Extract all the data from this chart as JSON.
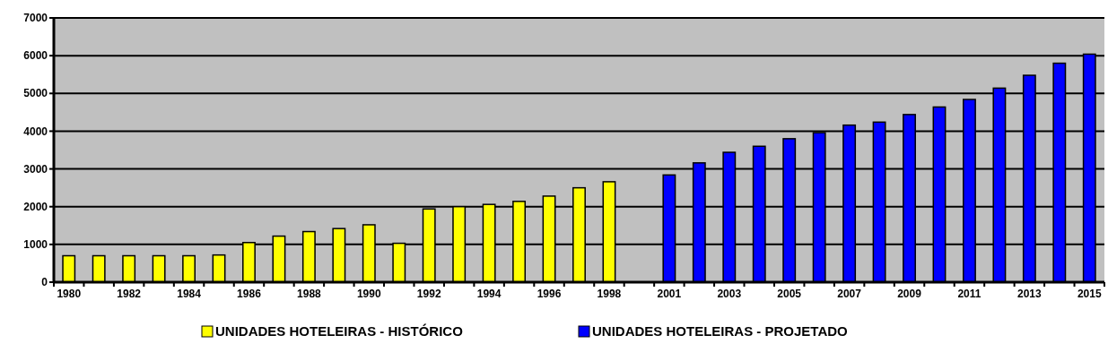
{
  "chart_data": {
    "type": "bar",
    "categories": [
      "1980",
      null,
      "1982",
      null,
      "1984",
      null,
      "1986",
      null,
      "1988",
      null,
      "1990",
      null,
      "1992",
      null,
      "1994",
      null,
      "1996",
      null,
      "1998",
      null,
      "2001",
      null,
      "2003",
      null,
      "2005",
      null,
      "2007",
      null,
      "2009",
      null,
      "2011",
      null,
      "2013",
      null,
      "2015"
    ],
    "series": [
      {
        "name": "UNIDADES HOTELEIRAS - HISTÓRICO",
        "color": "#ffff00",
        "values": [
          700,
          700,
          700,
          700,
          700,
          720,
          1050,
          1220,
          1340,
          1420,
          1520,
          1030,
          1940,
          2000,
          2060,
          2140,
          2280,
          2500,
          2660,
          null,
          null,
          null,
          null,
          null,
          null,
          null,
          null,
          null,
          null,
          null,
          null,
          null,
          null,
          null,
          null
        ]
      },
      {
        "name": "UNIDADES HOTELEIRAS - PROJETADO",
        "color": "#0000ff",
        "values": [
          null,
          null,
          null,
          null,
          null,
          null,
          null,
          null,
          null,
          null,
          null,
          null,
          null,
          null,
          null,
          null,
          null,
          null,
          null,
          null,
          2840,
          3160,
          3440,
          3600,
          3800,
          3960,
          4160,
          4240,
          4440,
          4640,
          4840,
          5140,
          5480,
          5800,
          6040
        ]
      }
    ],
    "ylim": [
      0,
      7000
    ],
    "yticks": [
      0,
      1000,
      2000,
      3000,
      4000,
      5000,
      6000,
      7000
    ],
    "grid": "y",
    "legend": "bottom"
  }
}
